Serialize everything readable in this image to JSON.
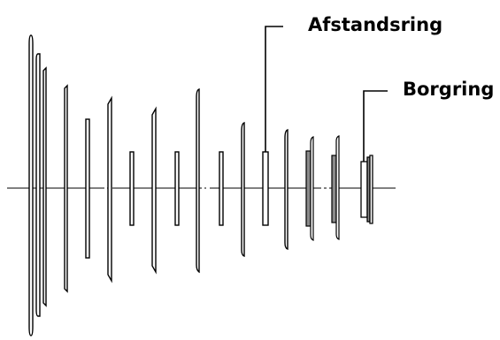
{
  "labels": {
    "spacer": "Afstandsring",
    "circlip": "Borgring"
  },
  "colors": {
    "line": "#000000",
    "fill": "#ffffff",
    "shaded": "#8a8a8a"
  }
}
